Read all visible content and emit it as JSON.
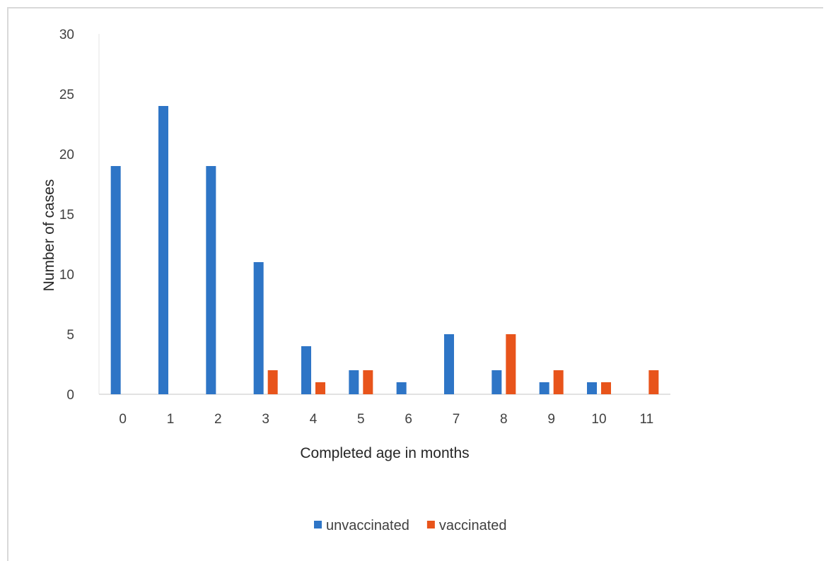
{
  "chart_data": {
    "type": "bar",
    "title": "",
    "xlabel": "Completed age in months",
    "ylabel": "Number of cases",
    "categories": [
      "0",
      "1",
      "2",
      "3",
      "4",
      "5",
      "6",
      "7",
      "8",
      "9",
      "10",
      "11"
    ],
    "series": [
      {
        "name": "unvaccinated",
        "color": "#2e75c6",
        "values": [
          19,
          24,
          19,
          11,
          4,
          2,
          1,
          5,
          2,
          1,
          1,
          0
        ]
      },
      {
        "name": "vaccinated",
        "color": "#e8541b",
        "values": [
          0,
          0,
          0,
          2,
          1,
          2,
          0,
          0,
          5,
          2,
          1,
          2
        ]
      }
    ],
    "ylim": [
      0,
      30
    ],
    "yticks": [
      "0",
      "5",
      "10",
      "15",
      "20",
      "25",
      "30"
    ],
    "grid": false,
    "legend_position": "bottom"
  }
}
